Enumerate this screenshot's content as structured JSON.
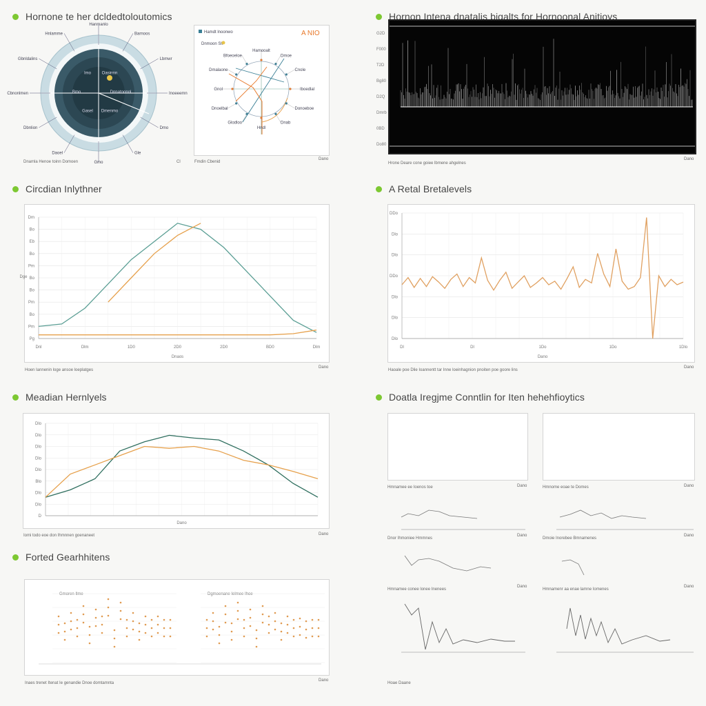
{
  "sections": {
    "s1": "Hornone te her dcldedtoloutomics",
    "s2": "Hornon Intena dnatalis bigalts for Hornoonal Anitioys",
    "s3": "Circdian Inlythner",
    "s4": "A Retal Bretalevels",
    "s5": "Meadian Hernlyels",
    "s6": "Doatla Iregjme Conntlin for Iten hehehfioytics",
    "s7": "Forted Gearhhitens"
  },
  "captions": {
    "c1": "Dnamla Henoe toinn Domoen",
    "c1b": "Cl",
    "c2": "Fmdin Cbenid",
    "c2b": "Dano",
    "c3": "Hrone Deare cone goiee lbmene ahgelnes",
    "c3b": "Dano",
    "c4": "Hoen Iannenin loge ansoe loeplatges",
    "c4b": "Dano",
    "c5": "Haoale poe Dlie Ioannentt tar Inne loeinhagnion pnoiten poe goore lins",
    "c5b": "Dano",
    "c6": "Iomi todo eoe don Ihmnnen goenaneet",
    "c6b": "Dano",
    "c7": "Inaes trenet Itenat Ie genandie Dnoe domtamnta",
    "c7b": "Dano",
    "sm1": "Hmnamee ee Ioenos toe",
    "sm1b": "Dano",
    "sm2": "Hmnome eoae te Domes",
    "sm2b": "Dano",
    "sm3": "Dnor Ihmoniee Hmmnes",
    "sm3b": "Dano",
    "sm4": "Dmoie Inorebee Bmnamenes",
    "sm4b": "Dano",
    "sm5": "Hmnamee conee lonee Inenees",
    "sm5b": "Dano",
    "sm6": "Hmnamenr aa enae lamne Iomenes",
    "sm6b": "Dano",
    "sm7": "Hoae Daane",
    "sm7b": "Dano"
  },
  "radial": {
    "outer_labels": [
      "Hanmanlo",
      "Barnoos",
      "Lbmwr",
      "Inoeeemn",
      "Dmo",
      "Gle",
      "Gmo",
      "Daoel",
      "Dbnlion",
      "Cbnonlmen",
      "Gbnldalins",
      "Hnlamme"
    ],
    "inner_labels": [
      "Oasirmn",
      "Dnnatoonol",
      "Dmenmo",
      "Gasel",
      "Bmo",
      "Imo"
    ]
  },
  "compass": {
    "legend": "Hamdt lnoonwo",
    "legend2": "Dnmoon Sll",
    "badge": "A NIO",
    "labels": [
      "Hamooalt",
      "Dmoe",
      "Cnole",
      "Iboedlal",
      "Donoeboe",
      "Dnab",
      "Hndl",
      "Glodloo",
      "Dnoelbal",
      "Gnol",
      "Dmalaone",
      "Bfoeoeloe"
    ],
    "colors": {
      "accent": "#e8792b",
      "line": "#3a7f95"
    }
  },
  "waveform": {
    "y_ticks": [
      "G2D",
      "F000",
      "T2D",
      "Bg80",
      "D2Q",
      "Dmrb",
      "0BD",
      "Do80"
    ]
  },
  "chart_data": [
    {
      "type": "line",
      "title": "Circdian Inlythner",
      "xlabel": "Dnaos",
      "ylabel": "Dge",
      "x_ticks": [
        "Dnl",
        "Dlm",
        "1D0",
        "2D0",
        "2D0",
        "BD0",
        "Dlm"
      ],
      "y_ticks": [
        "Pg",
        "Pm",
        "Bo",
        "Pm",
        "Bo",
        "Bo",
        "Pm",
        "Bo",
        "Eb",
        "Bo",
        "Dm"
      ],
      "ylim": [
        0,
        100
      ],
      "series": [
        {
          "color": "#5a9e94",
          "values": [
            10,
            12,
            25,
            45,
            65,
            80,
            95,
            90,
            75,
            55,
            35,
            15,
            5
          ]
        },
        {
          "color": "#e6a04b",
          "values": [
            3,
            3,
            3,
            3,
            3,
            3,
            3,
            3,
            3,
            3,
            3,
            4,
            7
          ]
        },
        {
          "color": "#e6a04b",
          "values": [
            null,
            null,
            null,
            30,
            50,
            70,
            85,
            95,
            null,
            null,
            null,
            null,
            null
          ]
        }
      ]
    },
    {
      "type": "line",
      "title": "A Retal Bretalevels",
      "xlabel": "Dano",
      "x_ticks": [
        "Dl",
        "Dl",
        "1Do",
        "1Do",
        "1Dlo"
      ],
      "y_ticks": [
        "Dlo",
        "Dlo",
        "Dlo",
        "DDo",
        "Dlo",
        "Dlo",
        "DDo"
      ],
      "ylim": [
        -60,
        80
      ],
      "series": [
        {
          "color": "#e0a060",
          "values": [
            0,
            8,
            -3,
            7,
            -2,
            9,
            3,
            -4,
            6,
            12,
            -2,
            8,
            2,
            30,
            5,
            -6,
            5,
            14,
            -4,
            3,
            10,
            -3,
            2,
            8,
            0,
            4,
            -5,
            7,
            20,
            -3,
            6,
            2,
            35,
            12,
            -2,
            40,
            4,
            -5,
            -2,
            8,
            75,
            -60,
            10,
            -2,
            6,
            0,
            3
          ]
        }
      ]
    },
    {
      "type": "line",
      "title": "Meadian Hernlyels",
      "xlabel": "Dano",
      "y_ticks": [
        "D",
        "Dlo",
        "Dlo",
        "Blo",
        "Dlo",
        "Dlo",
        "Dlo",
        "Dlo",
        "Dlo"
      ],
      "ylim": [
        0,
        100
      ],
      "series": [
        {
          "color": "#2e6e5e",
          "values": [
            20,
            28,
            40,
            70,
            80,
            87,
            84,
            82,
            70,
            55,
            35,
            20
          ]
        },
        {
          "color": "#e6a04b",
          "values": [
            20,
            45,
            55,
            65,
            75,
            73,
            75,
            70,
            60,
            55,
            48,
            40
          ]
        }
      ]
    },
    {
      "type": "scatter",
      "title": "Forted Gearhhitens",
      "series": [
        {
          "color": "#e09a50",
          "name": "Gmoren Ilme",
          "points": [
            [
              0.05,
              0.55
            ],
            [
              0.1,
              0.45
            ],
            [
              0.15,
              0.6
            ],
            [
              0.2,
              0.5
            ],
            [
              0.25,
              0.7
            ],
            [
              0.3,
              0.4
            ],
            [
              0.35,
              0.65
            ],
            [
              0.4,
              0.55
            ],
            [
              0.45,
              0.8
            ],
            [
              0.5,
              0.35
            ],
            [
              0.55,
              0.75
            ],
            [
              0.6,
              0.5
            ],
            [
              0.65,
              0.6
            ],
            [
              0.7,
              0.45
            ],
            [
              0.75,
              0.55
            ],
            [
              0.8,
              0.5
            ],
            [
              0.85,
              0.55
            ],
            [
              0.9,
              0.5
            ],
            [
              0.95,
              0.5
            ]
          ]
        },
        {
          "color": "#e09a50",
          "name": "Dgmoenane Ielmee Ihoe",
          "points": [
            [
              0.05,
              0.5
            ],
            [
              0.1,
              0.6
            ],
            [
              0.15,
              0.4
            ],
            [
              0.2,
              0.7
            ],
            [
              0.25,
              0.45
            ],
            [
              0.3,
              0.75
            ],
            [
              0.35,
              0.5
            ],
            [
              0.4,
              0.65
            ],
            [
              0.45,
              0.35
            ],
            [
              0.5,
              0.7
            ],
            [
              0.55,
              0.55
            ],
            [
              0.6,
              0.6
            ],
            [
              0.65,
              0.45
            ],
            [
              0.7,
              0.55
            ],
            [
              0.75,
              0.5
            ],
            [
              0.8,
              0.52
            ],
            [
              0.85,
              0.48
            ],
            [
              0.9,
              0.5
            ],
            [
              0.95,
              0.5
            ]
          ]
        }
      ]
    }
  ]
}
